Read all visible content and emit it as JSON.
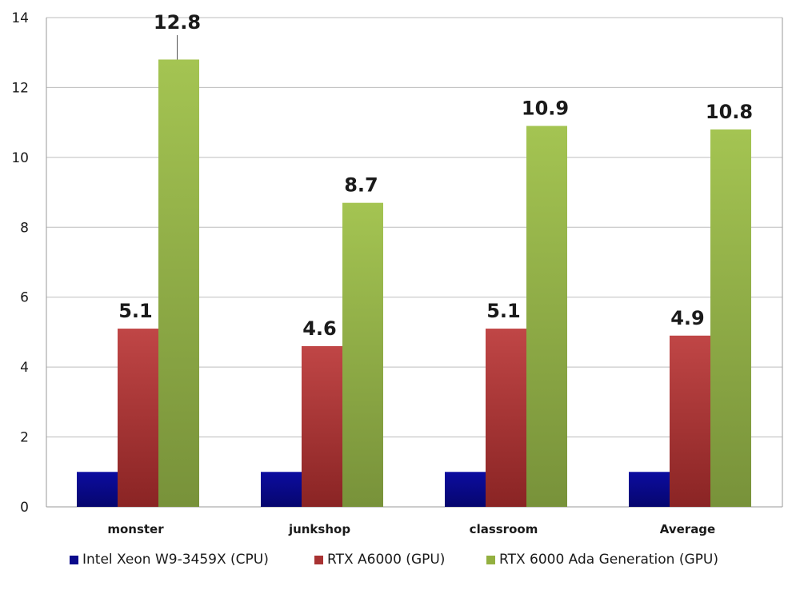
{
  "chart_data": {
    "type": "bar",
    "title": "",
    "xlabel": "",
    "ylabel": "",
    "categories": [
      "monster",
      "junkshop",
      "classroom",
      "Average"
    ],
    "series": [
      {
        "name": "Intel Xeon W9-3459X (CPU)",
        "values": [
          1,
          1,
          1,
          1
        ],
        "labels": [
          "",
          "",
          "",
          ""
        ],
        "color": "#0a0a8c"
      },
      {
        "name": "RTX A6000 (GPU)",
        "values": [
          5.1,
          4.6,
          5.1,
          4.9
        ],
        "labels": [
          "5.1",
          "4.6",
          "5.1",
          "4.9"
        ],
        "color": "#a83232"
      },
      {
        "name": "RTX 6000 Ada Generation (GPU)",
        "values": [
          12.8,
          8.7,
          10.9,
          10.8
        ],
        "labels": [
          "12.8",
          "8.7",
          "10.9",
          "10.8"
        ],
        "color": "#93b040"
      }
    ],
    "ylim": [
      0,
      14
    ],
    "yticks": [
      0,
      2,
      4,
      6,
      8,
      10,
      12,
      14
    ],
    "grid": true,
    "legend": "bottom"
  }
}
